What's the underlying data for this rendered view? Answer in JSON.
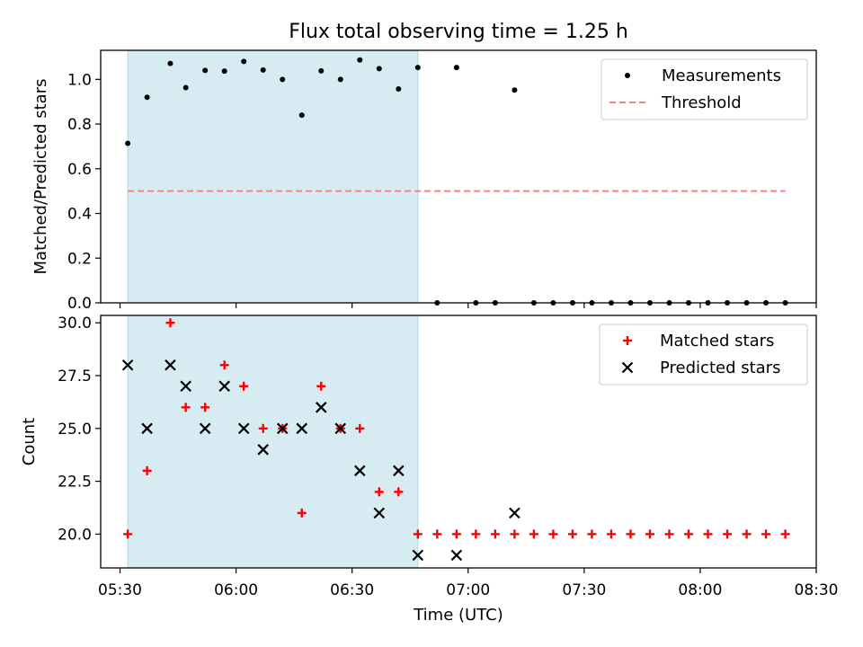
{
  "title": "Flux total observing time = 1.25 h",
  "colors": {
    "shade": "#add8e6",
    "measurement": "#000000",
    "threshold": "#ff7f7f",
    "matched": "#ff0000",
    "predicted": "#000000"
  },
  "chart_data": [
    {
      "type": "scatter",
      "ylabel": "Matched/Predicted stars",
      "ylim": [
        0,
        1.13
      ],
      "yticks": [
        0.0,
        0.2,
        0.4,
        0.6,
        0.8,
        1.0
      ],
      "ytick_labels": [
        "0.0",
        "0.2",
        "0.4",
        "0.6",
        "0.8",
        "1.0"
      ],
      "shaded_interval": [
        "05:32",
        "06:47"
      ],
      "legend": {
        "placement": "top-right",
        "entries": [
          "Measurements",
          "Threshold"
        ]
      },
      "series": [
        {
          "name": "Measurements",
          "marker": "dot",
          "x": [
            "05:32",
            "05:37",
            "05:43",
            "05:47",
            "05:52",
            "05:57",
            "06:02",
            "06:07",
            "06:12",
            "06:17",
            "06:22",
            "06:27",
            "06:32",
            "06:37",
            "06:42",
            "06:47",
            "06:52",
            "06:57",
            "07:02",
            "07:07",
            "07:12",
            "07:17",
            "07:22",
            "07:27",
            "07:32",
            "07:37",
            "07:42",
            "07:47",
            "07:52",
            "07:57",
            "08:02",
            "08:07",
            "08:12",
            "08:17",
            "08:22"
          ],
          "y": [
            0.714,
            0.92,
            1.071,
            0.963,
            1.04,
            1.037,
            1.08,
            1.042,
            1.0,
            0.84,
            1.038,
            1.0,
            1.087,
            1.048,
            0.957,
            1.053,
            0,
            1.053,
            0,
            0,
            0.952,
            0,
            0,
            0,
            0,
            0,
            0,
            0,
            0,
            0,
            0,
            0,
            0,
            0,
            0
          ]
        },
        {
          "name": "Threshold",
          "marker": "dashed-line",
          "x": [
            "05:32",
            "08:22"
          ],
          "y": [
            0.5,
            0.5
          ]
        }
      ]
    },
    {
      "type": "scatter",
      "xlabel": "Time (UTC)",
      "ylabel": "Count",
      "ylim": [
        18.4,
        30.35
      ],
      "yticks": [
        20.0,
        22.5,
        25.0,
        27.5,
        30.0
      ],
      "ytick_labels": [
        "20.0",
        "22.5",
        "25.0",
        "27.5",
        "30.0"
      ],
      "xlim": [
        "05:25",
        "08:30"
      ],
      "xticks": [
        "05:30",
        "06:00",
        "06:30",
        "07:00",
        "07:30",
        "08:00",
        "08:30"
      ],
      "shaded_interval": [
        "05:32",
        "06:47"
      ],
      "legend": {
        "placement": "top-right",
        "entries": [
          "Matched stars",
          "Predicted stars"
        ]
      },
      "series": [
        {
          "name": "Matched stars",
          "marker": "plus",
          "x": [
            "05:32",
            "05:37",
            "05:43",
            "05:47",
            "05:52",
            "05:57",
            "06:02",
            "06:07",
            "06:12",
            "06:17",
            "06:22",
            "06:27",
            "06:32",
            "06:37",
            "06:42",
            "06:47",
            "06:52",
            "06:57",
            "07:02",
            "07:07",
            "07:12",
            "07:17",
            "07:22",
            "07:27",
            "07:32",
            "07:37",
            "07:42",
            "07:47",
            "07:52",
            "07:57",
            "08:02",
            "08:07",
            "08:12",
            "08:17",
            "08:22"
          ],
          "y": [
            20,
            23,
            30,
            26,
            26,
            28,
            27,
            25,
            25,
            21,
            27,
            25,
            25,
            22,
            22,
            20,
            20,
            20,
            20,
            20,
            20,
            20,
            20,
            20,
            20,
            20,
            20,
            20,
            20,
            20,
            20,
            20,
            20,
            20,
            20
          ]
        },
        {
          "name": "Predicted stars",
          "marker": "x",
          "x": [
            "05:32",
            "05:37",
            "05:43",
            "05:47",
            "05:52",
            "05:57",
            "06:02",
            "06:07",
            "06:12",
            "06:17",
            "06:22",
            "06:27",
            "06:32",
            "06:37",
            "06:42",
            "06:47",
            "06:57",
            "07:12"
          ],
          "y": [
            28,
            25,
            28,
            27,
            25,
            27,
            25,
            24,
            25,
            25,
            26,
            25,
            23,
            21,
            23,
            19,
            19,
            21
          ]
        }
      ]
    }
  ]
}
